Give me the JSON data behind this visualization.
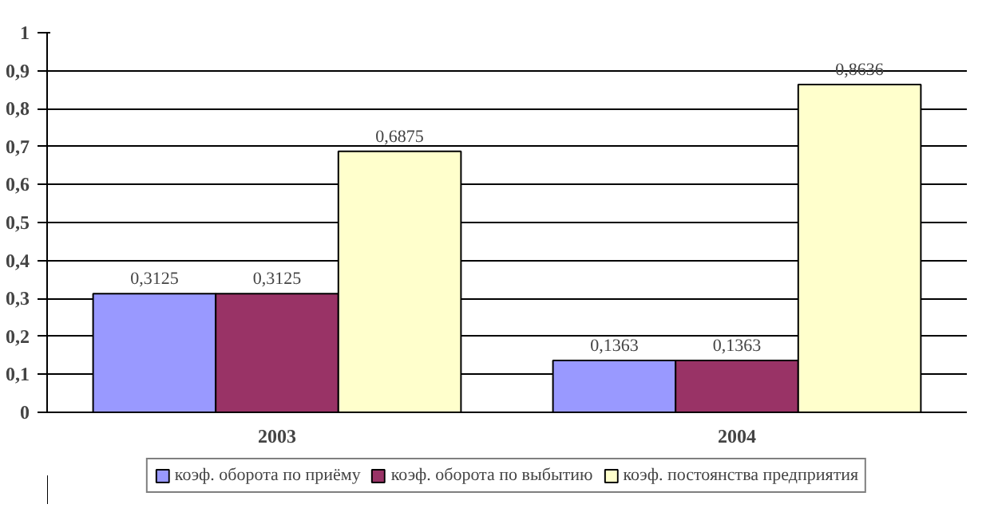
{
  "chart_data": {
    "type": "bar",
    "categories": [
      "2003",
      "2004"
    ],
    "series": [
      {
        "name": "коэф. оборота по приёму",
        "color": "#9999ff",
        "values": [
          0.3125,
          0.1363
        ],
        "value_labels": [
          "0,3125",
          "0,1363"
        ]
      },
      {
        "name": "коэф. оборота по выбытию",
        "color": "#993366",
        "values": [
          0.3125,
          0.1363
        ],
        "value_labels": [
          "0,3125",
          "0,1363"
        ]
      },
      {
        "name": "коэф. постоянства предприятия",
        "color": "#ffffcc",
        "values": [
          0.6875,
          0.8636
        ],
        "value_labels": [
          "0,6875",
          "0,8636"
        ]
      }
    ],
    "ylim": [
      0,
      1
    ],
    "yticks": [
      0,
      {
        "value": 0.1,
        "label": "0,1"
      },
      {
        "value": 0.2,
        "label": "0,2"
      },
      {
        "value": 0.3,
        "label": "0,3"
      },
      {
        "value": 0.4,
        "label": "0,4"
      },
      {
        "value": 0.5,
        "label": "0,5"
      },
      {
        "value": 0.6,
        "label": "0,6"
      },
      {
        "value": 0.7,
        "label": "0,7"
      },
      {
        "value": 0.8,
        "label": "0,8"
      },
      {
        "value": 0.9,
        "label": "0,9"
      },
      1
    ],
    "grid": "y",
    "legend": "bottom"
  }
}
